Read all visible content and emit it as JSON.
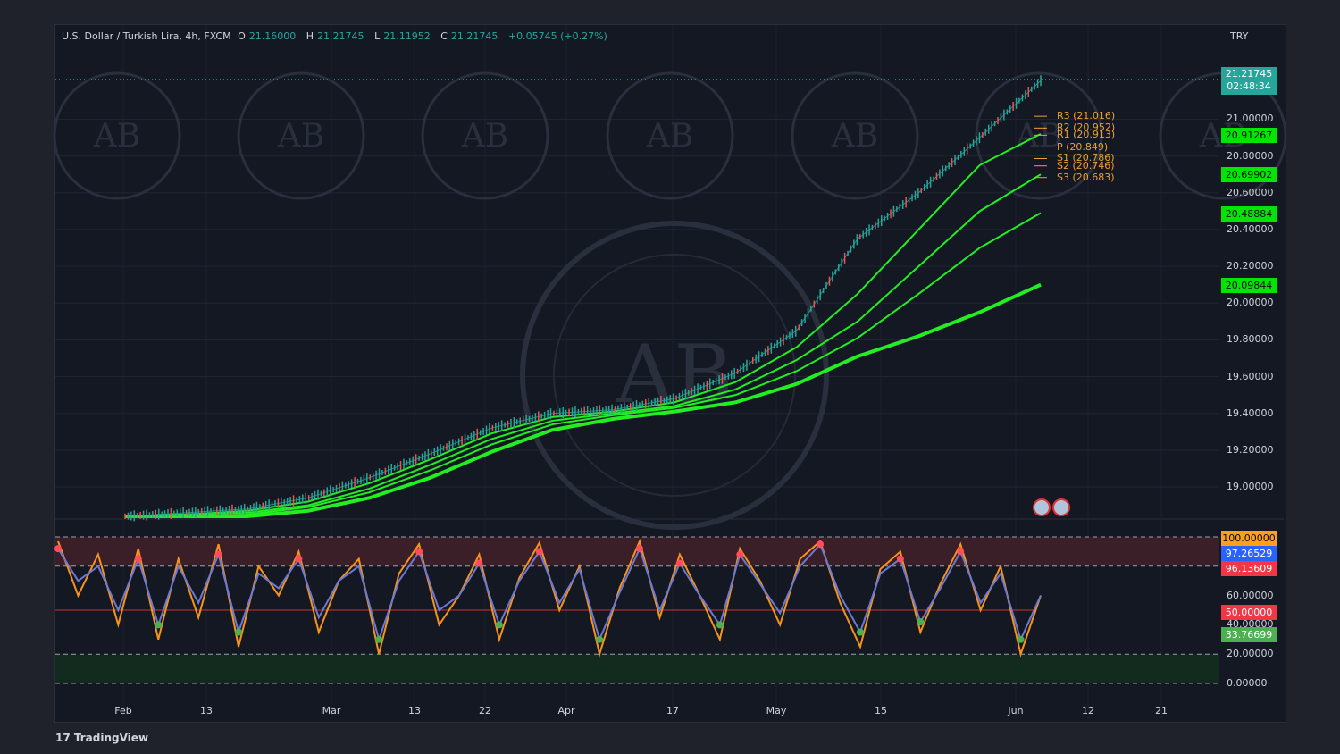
{
  "header": {
    "title": "U.S. Dollar / Turkish Lira, 4h, FXCM",
    "open_label": "O",
    "open": "21.16000",
    "high_label": "H",
    "high": "21.21745",
    "low_label": "L",
    "low": "21.11952",
    "close_label": "C",
    "close": "21.21745",
    "change": "+0.05745 (+0.27%)"
  },
  "currency": "TRY",
  "last_price": {
    "value": "21.21745",
    "countdown": "02:48:34"
  },
  "brand": "TradingView",
  "colors": {
    "up": "#26a69a",
    "down": "#ef5350",
    "ema": "#22ee22",
    "pivot": "#f0a030",
    "osc_blue": "#6b79d6",
    "osc_orange": "#f7931a",
    "tag_green": "#00e600",
    "tag_orange": "#ff9f1c",
    "tag_blue": "#2962ff",
    "tag_red": "#f23645",
    "tag_gray_green": "#4caf50"
  },
  "watermark_icon": "shield-ab-logo-icon",
  "chart_data": [
    {
      "type": "line",
      "pane": "price",
      "ylim": [
        18.83,
        21.25
      ],
      "y_ticks": [
        "21.00000",
        "20.80000",
        "20.60000",
        "20.40000",
        "20.20000",
        "20.00000",
        "19.80000",
        "19.60000",
        "19.40000",
        "19.20000",
        "19.00000"
      ],
      "x_ticks": [
        "Feb",
        "13",
        "Mar",
        "13",
        "22",
        "Apr",
        "17",
        "May",
        "15",
        "Jun",
        "12",
        "21"
      ],
      "series": [
        {
          "values": [
            18.84,
            18.86,
            18.88,
            18.94,
            19.05,
            19.18,
            19.32,
            19.4,
            19.42,
            19.48,
            19.62,
            19.85,
            20.35,
            20.6,
            20.9,
            21.21
          ]
        },
        {
          "values": [
            18.84,
            18.85,
            18.87,
            18.92,
            19.02,
            19.15,
            19.29,
            19.38,
            19.41,
            19.46,
            19.57,
            19.76,
            20.05,
            20.4,
            20.75,
            20.92
          ]
        },
        {
          "values": [
            18.84,
            18.85,
            18.86,
            18.9,
            18.99,
            19.12,
            19.26,
            19.36,
            19.4,
            19.44,
            19.53,
            19.69,
            19.9,
            20.2,
            20.5,
            20.7
          ]
        },
        {
          "values": [
            18.84,
            18.84,
            18.85,
            18.89,
            18.97,
            19.09,
            19.23,
            19.34,
            19.39,
            19.43,
            19.5,
            19.63,
            19.81,
            20.05,
            20.3,
            20.49
          ]
        },
        {
          "values": [
            18.84,
            18.84,
            18.84,
            18.87,
            18.94,
            19.05,
            19.19,
            19.31,
            19.37,
            19.41,
            19.46,
            19.56,
            19.71,
            19.82,
            19.95,
            20.1
          ]
        }
      ],
      "pivots": [
        {
          "label": "R3 (21.016)"
        },
        {
          "label": "R2 (20.952)"
        },
        {
          "label": "R1 (20.913)"
        },
        {
          "label": "P (20.849)"
        },
        {
          "label": "S1 (20.786)"
        },
        {
          "label": "S2 (20.746)"
        },
        {
          "label": "S3 (20.683)"
        }
      ],
      "price_tags": [
        {
          "value": "20.91267"
        },
        {
          "value": "20.69902"
        },
        {
          "value": "20.48884"
        },
        {
          "value": "20.09844"
        }
      ]
    },
    {
      "type": "line",
      "pane": "oscillator",
      "ylim": [
        0,
        100
      ],
      "y_ticks": [
        "60.00000",
        "40.00000",
        "20.00000",
        "0.00000"
      ],
      "levels": [
        100,
        80,
        50,
        20,
        0
      ],
      "series": [
        {
          "values": [
            97,
            60,
            88,
            40,
            92,
            30,
            85,
            45,
            95,
            25,
            80,
            60,
            90,
            35,
            70,
            85,
            20,
            75,
            95,
            40,
            60,
            88,
            30,
            72,
            96,
            50,
            80,
            20,
            65,
            97,
            45,
            88,
            60,
            30,
            92,
            70,
            40,
            85,
            97,
            55,
            25,
            78,
            90,
            35,
            68,
            95,
            50,
            80,
            20,
            60
          ]
        },
        {
          "values": [
            92,
            70,
            80,
            50,
            85,
            40,
            80,
            55,
            88,
            35,
            75,
            65,
            85,
            45,
            70,
            80,
            30,
            70,
            90,
            50,
            60,
            82,
            40,
            70,
            90,
            55,
            78,
            30,
            62,
            92,
            50,
            82,
            60,
            40,
            88,
            68,
            48,
            80,
            95,
            60,
            35,
            75,
            85,
            42,
            65,
            90,
            55,
            75,
            30,
            60
          ]
        }
      ],
      "tags": [
        {
          "value": "100.00000"
        },
        {
          "value": "97.26529"
        },
        {
          "value": "96.13609"
        },
        {
          "value": "50.00000"
        },
        {
          "value": "33.76699"
        }
      ]
    }
  ]
}
